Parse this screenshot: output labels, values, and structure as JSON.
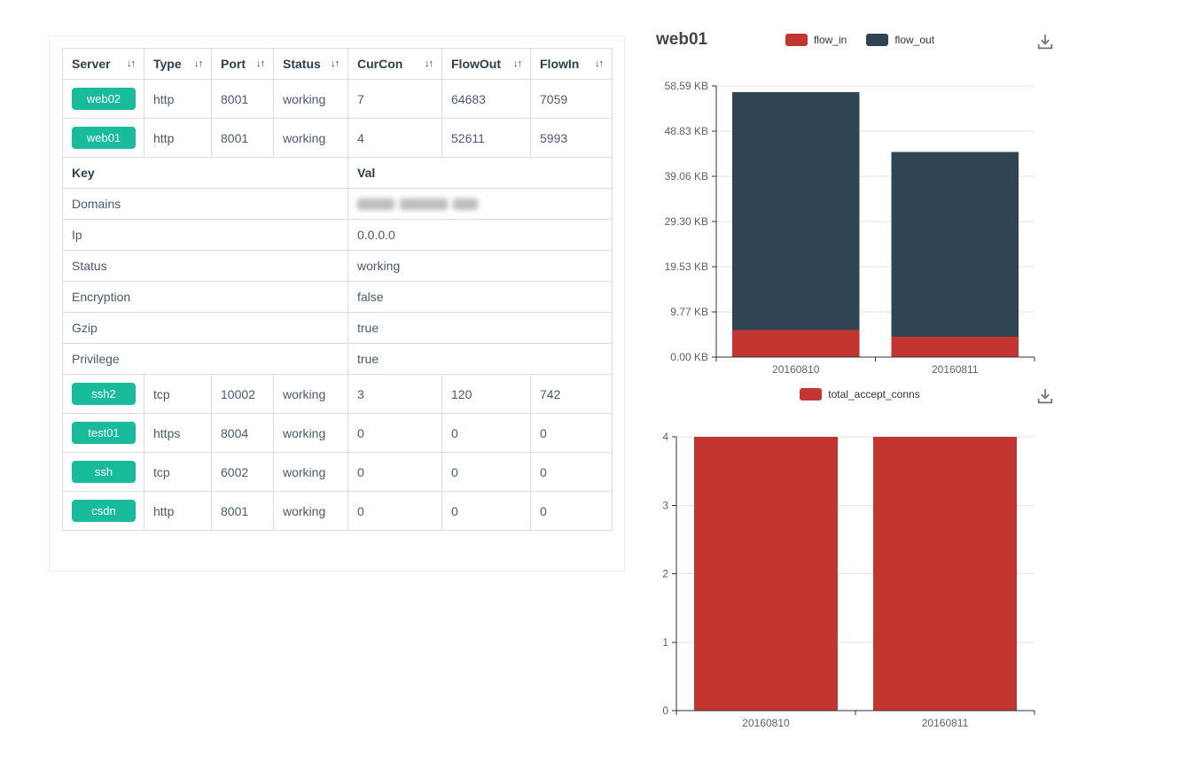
{
  "colors": {
    "accent_green": "#18bc9c",
    "flow_in_red": "#c23531",
    "flow_out_dark": "#2f4554",
    "grid": "#e3e3e3",
    "axis": "#333333",
    "axis_label": "#5c6269",
    "table_border": "#dcdcdc",
    "header_text": "#2c3e50",
    "body_text": "#4a5a6a"
  },
  "icons": {
    "sort": "sort-arrows",
    "download": "download-arrow-to-tray"
  },
  "table": {
    "sort_icon": "↓↑",
    "columns": [
      {
        "label": "Server"
      },
      {
        "label": "Type"
      },
      {
        "label": "Port"
      },
      {
        "label": "Status"
      },
      {
        "label": "CurCon"
      },
      {
        "label": "FlowOut"
      },
      {
        "label": "FlowIn"
      }
    ],
    "rows_top": [
      {
        "server": "web02",
        "type": "http",
        "port": "8001",
        "status": "working",
        "curcon": "7",
        "flowout": "64683",
        "flowin": "7059"
      },
      {
        "server": "web01",
        "type": "http",
        "port": "8001",
        "status": "working",
        "curcon": "4",
        "flowout": "52611",
        "flowin": "5993"
      }
    ],
    "kv": {
      "key_header": "Key",
      "val_header": "Val",
      "rows": [
        {
          "key": "Domains",
          "val": "",
          "redacted": true
        },
        {
          "key": "Ip",
          "val": "0.0.0.0",
          "redacted": false
        },
        {
          "key": "Status",
          "val": "working",
          "redacted": false
        },
        {
          "key": "Encryption",
          "val": "false",
          "redacted": false
        },
        {
          "key": "Gzip",
          "val": "true",
          "redacted": false
        },
        {
          "key": "Privilege",
          "val": "true",
          "redacted": false
        }
      ]
    },
    "rows_bottom": [
      {
        "server": "ssh2",
        "type": "tcp",
        "port": "10002",
        "status": "working",
        "curcon": "3",
        "flowout": "120",
        "flowin": "742"
      },
      {
        "server": "test01",
        "type": "https",
        "port": "8004",
        "status": "working",
        "curcon": "0",
        "flowout": "0",
        "flowin": "0"
      },
      {
        "server": "ssh",
        "type": "tcp",
        "port": "6002",
        "status": "working",
        "curcon": "0",
        "flowout": "0",
        "flowin": "0"
      },
      {
        "server": "csdn",
        "type": "http",
        "port": "8001",
        "status": "working",
        "curcon": "0",
        "flowout": "0",
        "flowin": "0"
      }
    ]
  },
  "chart_data": [
    {
      "type": "bar",
      "stacked": true,
      "title": "web01",
      "legend_position": "top-center",
      "categories": [
        "20160810",
        "20160811"
      ],
      "series": [
        {
          "name": "flow_in",
          "color": "#c23531",
          "values": [
            5.85,
            4.4
          ]
        },
        {
          "name": "flow_out",
          "color": "#2f4554",
          "values": [
            51.38,
            39.9
          ]
        }
      ],
      "y_unit": "KB",
      "ylim": [
        0,
        58.59
      ],
      "grid": true,
      "y_ticks": [
        {
          "v": 0,
          "label": "0.00 KB"
        },
        {
          "v": 9.77,
          "label": "9.77 KB"
        },
        {
          "v": 19.53,
          "label": "19.53 KB"
        },
        {
          "v": 29.3,
          "label": "29.30 KB"
        },
        {
          "v": 39.06,
          "label": "39.06 KB"
        },
        {
          "v": 48.83,
          "label": "48.83 KB"
        },
        {
          "v": 58.59,
          "label": "58.59 KB"
        }
      ]
    },
    {
      "type": "bar",
      "stacked": false,
      "title": "",
      "legend_position": "top-center",
      "categories": [
        "20160810",
        "20160811"
      ],
      "series": [
        {
          "name": "total_accept_conns",
          "color": "#c23531",
          "values": [
            4,
            4
          ]
        }
      ],
      "ylim": [
        0,
        4
      ],
      "grid": true,
      "y_ticks": [
        {
          "v": 0,
          "label": "0"
        },
        {
          "v": 1,
          "label": "1"
        },
        {
          "v": 2,
          "label": "2"
        },
        {
          "v": 3,
          "label": "3"
        },
        {
          "v": 4,
          "label": "4"
        }
      ]
    }
  ]
}
